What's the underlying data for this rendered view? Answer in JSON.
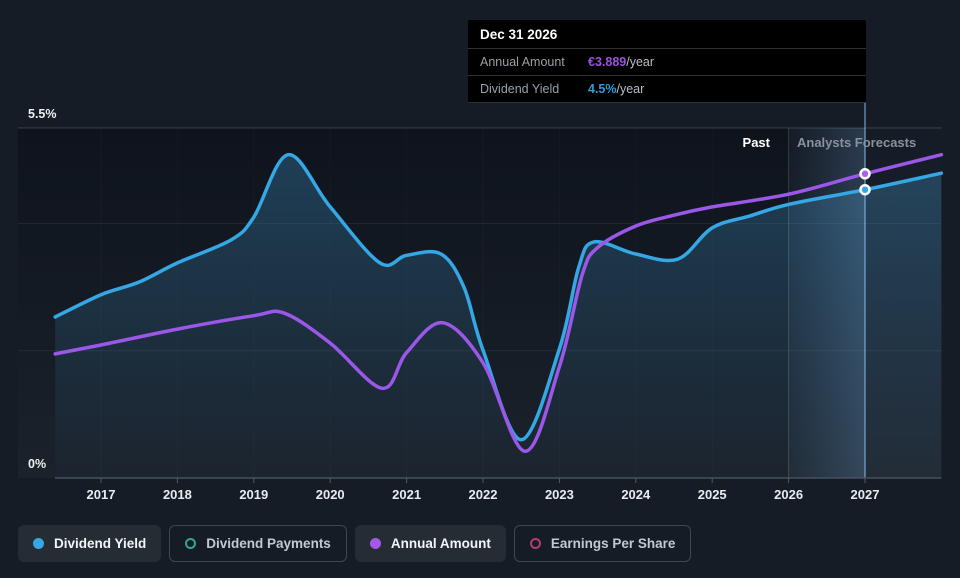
{
  "y_axis": {
    "top_label": "5.5%",
    "bottom_label": "0%"
  },
  "x_axis": {
    "years": [
      "2017",
      "2018",
      "2019",
      "2020",
      "2021",
      "2022",
      "2023",
      "2024",
      "2025",
      "2026",
      "2027"
    ]
  },
  "regions": {
    "past_label": "Past",
    "forecast_label": "Analysts Forecasts"
  },
  "tooltip": {
    "title": "Dec 31 2026",
    "rows": [
      {
        "label": "Annual Amount",
        "value": "€3.889",
        "suffix": "/year",
        "color": "#9B51E0"
      },
      {
        "label": "Dividend Yield",
        "value": "4.5%",
        "suffix": "/year",
        "color": "#2D9CDB"
      }
    ]
  },
  "legend": [
    {
      "id": "dividend-yield",
      "label": "Dividend Yield",
      "marker": "filled",
      "color": "#35A7E5",
      "active": true
    },
    {
      "id": "dividend-payments",
      "label": "Dividend Payments",
      "marker": "hollow",
      "color": "#2FA897",
      "active": false
    },
    {
      "id": "annual-amount",
      "label": "Annual Amount",
      "marker": "filled",
      "color": "#A259E8",
      "active": true
    },
    {
      "id": "earnings-per-share",
      "label": "Earnings Per Share",
      "marker": "hollow",
      "color": "#B53C72",
      "active": false
    }
  ],
  "colors": {
    "background": "#161C26",
    "plot_bg_top": "#0E131C",
    "plot_bg_bottom": "#1B222B",
    "dividend_yield_line": "#35A7E5",
    "annual_amount_line": "#9B57E8",
    "area_fill_base": "#3E90C4",
    "axis_line": "#47515D",
    "tick": "#505A66",
    "divider": "rgba(255,255,255,0.14)",
    "hover_line": "rgba(130,185,235,0.5)",
    "tooltip_bg": "#000000"
  },
  "chart_data": {
    "type": "line",
    "title": "Dividend yield history and analyst forecasts",
    "ylim": [
      0,
      5.5
    ],
    "y_unit": "%",
    "gridlines": [
      2,
      4,
      5.5
    ],
    "x_range": [
      2016.4,
      2028
    ],
    "x_ticks": [
      2017,
      2018,
      2019,
      2020,
      2021,
      2022,
      2023,
      2024,
      2025,
      2026,
      2027
    ],
    "past_forecast_boundary_year": 2026,
    "hover": {
      "date": "Dec 31 2026",
      "x": 2027.0,
      "annual_amount_eur_per_year": 3.889,
      "dividend_yield_pct_per_year": 4.5
    },
    "legend_position": "bottom",
    "series": [
      {
        "id": "dividend-yield",
        "name": "Dividend Yield",
        "color": "#35A7E5",
        "area": true,
        "points": [
          [
            2016.4,
            2.53
          ],
          [
            2017.0,
            2.88
          ],
          [
            2017.5,
            3.08
          ],
          [
            2018.0,
            3.38
          ],
          [
            2018.7,
            3.74
          ],
          [
            2019.0,
            4.1
          ],
          [
            2019.45,
            5.08
          ],
          [
            2020.0,
            4.26
          ],
          [
            2020.65,
            3.38
          ],
          [
            2021.0,
            3.5
          ],
          [
            2021.45,
            3.52
          ],
          [
            2021.75,
            3.0
          ],
          [
            2022.0,
            2.01
          ],
          [
            2022.5,
            0.6
          ],
          [
            2023.0,
            2.03
          ],
          [
            2023.25,
            3.3
          ],
          [
            2023.45,
            3.71
          ],
          [
            2024.0,
            3.52
          ],
          [
            2024.55,
            3.44
          ],
          [
            2025.0,
            3.93
          ],
          [
            2025.5,
            4.12
          ],
          [
            2026.0,
            4.3
          ],
          [
            2027.0,
            4.53
          ],
          [
            2028.0,
            4.79
          ]
        ]
      },
      {
        "id": "annual-amount",
        "name": "Annual Amount",
        "color": "#9B57E8",
        "area": false,
        "points": [
          [
            2016.4,
            1.95
          ],
          [
            2017.0,
            2.09
          ],
          [
            2018.0,
            2.34
          ],
          [
            2019.0,
            2.55
          ],
          [
            2019.4,
            2.59
          ],
          [
            2020.0,
            2.12
          ],
          [
            2020.68,
            1.41
          ],
          [
            2021.0,
            1.97
          ],
          [
            2021.47,
            2.44
          ],
          [
            2022.0,
            1.81
          ],
          [
            2022.55,
            0.42
          ],
          [
            2023.0,
            1.75
          ],
          [
            2023.3,
            3.2
          ],
          [
            2023.5,
            3.62
          ],
          [
            2024.0,
            3.96
          ],
          [
            2024.5,
            4.13
          ],
          [
            2025.0,
            4.26
          ],
          [
            2026.0,
            4.46
          ],
          [
            2027.0,
            4.78
          ],
          [
            2028.0,
            5.08
          ]
        ]
      }
    ],
    "markers": [
      {
        "series": "annual-amount",
        "x": 2027.0,
        "y": 4.78,
        "color": "#A862EA"
      },
      {
        "series": "dividend-yield",
        "x": 2027.0,
        "y": 4.53,
        "color": "#35A7E5"
      }
    ]
  }
}
